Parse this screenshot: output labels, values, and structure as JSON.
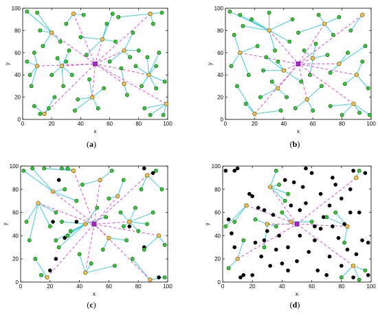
{
  "chart_data": [
    {
      "type": "scatter",
      "caption_letter": "a",
      "xlabel": "x",
      "ylabel": "y",
      "xlim": [
        0,
        100
      ],
      "ylim": [
        0,
        100
      ],
      "x_ticks": [
        0,
        20,
        40,
        60,
        80,
        100
      ],
      "y_ticks": [
        0,
        20,
        40,
        60,
        80,
        100
      ],
      "grid": false,
      "base_station": [
        50,
        50
      ],
      "cluster_heads": [
        [
          15,
          5
        ],
        [
          10,
          48
        ],
        [
          20,
          78
        ],
        [
          35,
          95
        ],
        [
          55,
          72
        ],
        [
          70,
          62
        ],
        [
          70,
          32
        ],
        [
          48,
          20
        ],
        [
          87,
          40
        ],
        [
          99,
          14
        ],
        [
          88,
          95
        ],
        [
          27,
          48
        ]
      ],
      "members": [
        [
          3,
          97
        ],
        [
          10,
          96
        ],
        [
          12,
          80
        ],
        [
          8,
          60
        ],
        [
          3,
          52
        ],
        [
          5,
          40
        ],
        [
          8,
          12
        ],
        [
          12,
          5
        ],
        [
          18,
          10
        ],
        [
          22,
          20
        ],
        [
          20,
          40
        ],
        [
          24,
          55
        ],
        [
          28,
          30
        ],
        [
          26,
          70
        ],
        [
          30,
          86
        ],
        [
          32,
          62
        ],
        [
          34,
          40
        ],
        [
          38,
          18
        ],
        [
          36,
          8
        ],
        [
          40,
          74
        ],
        [
          44,
          58
        ],
        [
          46,
          36
        ],
        [
          52,
          10
        ],
        [
          56,
          28
        ],
        [
          60,
          52
        ],
        [
          58,
          86
        ],
        [
          62,
          95
        ],
        [
          66,
          92
        ],
        [
          64,
          70
        ],
        [
          68,
          46
        ],
        [
          72,
          22
        ],
        [
          74,
          56
        ],
        [
          78,
          48
        ],
        [
          80,
          62
        ],
        [
          76,
          78
        ],
        [
          82,
          30
        ],
        [
          84,
          10
        ],
        [
          86,
          56
        ],
        [
          90,
          86
        ],
        [
          92,
          28
        ],
        [
          94,
          60
        ],
        [
          96,
          96
        ],
        [
          98,
          34
        ],
        [
          97,
          4
        ],
        [
          88,
          4
        ],
        [
          42,
          94
        ],
        [
          14,
          66
        ],
        [
          6,
          30
        ],
        [
          30,
          52
        ],
        [
          92,
          48
        ]
      ],
      "point_colors": {
        "member": "#33cc33",
        "cluster_head": "#f5c24a",
        "dead": "#000000",
        "base_station": "#b020d0",
        "member_link": "#2ec6d8",
        "ch_link": "#d33bd3"
      }
    },
    {
      "type": "scatter",
      "caption_letter": "b",
      "xlabel": "x",
      "ylabel": "y",
      "xlim": [
        0,
        100
      ],
      "ylim": [
        0,
        100
      ],
      "x_ticks": [
        0,
        20,
        40,
        60,
        80,
        100
      ],
      "y_ticks": [
        0,
        20,
        40,
        60,
        80,
        100
      ],
      "grid": false,
      "base_station": [
        50,
        50
      ],
      "cluster_heads": [
        [
          10,
          60
        ],
        [
          20,
          5
        ],
        [
          30,
          80
        ],
        [
          36,
          28
        ],
        [
          40,
          44
        ],
        [
          60,
          55
        ],
        [
          56,
          18
        ],
        [
          68,
          86
        ],
        [
          78,
          50
        ],
        [
          90,
          40
        ],
        [
          94,
          94
        ],
        [
          88,
          14
        ]
      ],
      "members": [
        [
          3,
          97
        ],
        [
          10,
          94
        ],
        [
          6,
          76
        ],
        [
          4,
          48
        ],
        [
          8,
          30
        ],
        [
          14,
          14
        ],
        [
          24,
          20
        ],
        [
          26,
          44
        ],
        [
          22,
          66
        ],
        [
          18,
          90
        ],
        [
          30,
          96
        ],
        [
          34,
          62
        ],
        [
          38,
          8
        ],
        [
          42,
          20
        ],
        [
          44,
          70
        ],
        [
          46,
          90
        ],
        [
          50,
          78
        ],
        [
          52,
          34
        ],
        [
          58,
          40
        ],
        [
          62,
          68
        ],
        [
          64,
          94
        ],
        [
          66,
          30
        ],
        [
          70,
          58
        ],
        [
          72,
          12
        ],
        [
          74,
          76
        ],
        [
          78,
          92
        ],
        [
          82,
          32
        ],
        [
          84,
          60
        ],
        [
          86,
          80
        ],
        [
          92,
          6
        ],
        [
          96,
          66
        ],
        [
          98,
          28
        ],
        [
          99,
          4
        ],
        [
          80,
          4
        ],
        [
          54,
          62
        ],
        [
          28,
          56
        ],
        [
          16,
          40
        ],
        [
          12,
          84
        ],
        [
          36,
          52
        ],
        [
          60,
          8
        ],
        [
          72,
          42
        ],
        [
          94,
          52
        ],
        [
          48,
          10
        ],
        [
          32,
          34
        ]
      ],
      "point_colors": {
        "member": "#33cc33",
        "cluster_head": "#f5c24a",
        "dead": "#000000",
        "base_station": "#b020d0",
        "member_link": "#2ec6d8",
        "ch_link": "#d33bd3"
      }
    },
    {
      "type": "scatter",
      "caption_letter": "c",
      "xlabel": "x",
      "ylabel": "y",
      "xlim": [
        0,
        100
      ],
      "ylim": [
        0,
        100
      ],
      "x_ticks": [
        0,
        20,
        40,
        60,
        80,
        100
      ],
      "y_ticks": [
        0,
        20,
        40,
        60,
        80,
        100
      ],
      "grid": false,
      "base_station": [
        50,
        50
      ],
      "cluster_heads": [
        [
          18,
          4
        ],
        [
          12,
          68
        ],
        [
          22,
          78
        ],
        [
          36,
          96
        ],
        [
          44,
          50
        ],
        [
          54,
          88
        ],
        [
          66,
          74
        ],
        [
          60,
          38
        ],
        [
          74,
          52
        ],
        [
          86,
          92
        ],
        [
          88,
          2
        ],
        [
          94,
          40
        ],
        [
          44,
          8
        ]
      ],
      "members": [
        [
          2,
          96
        ],
        [
          8,
          98
        ],
        [
          4,
          52
        ],
        [
          6,
          36
        ],
        [
          10,
          20
        ],
        [
          14,
          6
        ],
        [
          20,
          48
        ],
        [
          24,
          60
        ],
        [
          26,
          30
        ],
        [
          28,
          52
        ],
        [
          30,
          80
        ],
        [
          32,
          98
        ],
        [
          34,
          44
        ],
        [
          38,
          70
        ],
        [
          40,
          24
        ],
        [
          42,
          84
        ],
        [
          48,
          16
        ],
        [
          52,
          64
        ],
        [
          56,
          28
        ],
        [
          58,
          56
        ],
        [
          62,
          96
        ],
        [
          64,
          14
        ],
        [
          68,
          60
        ],
        [
          70,
          88
        ],
        [
          72,
          36
        ],
        [
          76,
          20
        ],
        [
          78,
          64
        ],
        [
          80,
          44
        ],
        [
          82,
          80
        ],
        [
          84,
          28
        ],
        [
          90,
          60
        ],
        [
          92,
          96
        ],
        [
          96,
          80
        ],
        [
          98,
          32
        ],
        [
          98,
          4
        ],
        [
          28,
          98
        ],
        [
          16,
          98
        ],
        [
          24,
          36
        ],
        [
          32,
          40
        ],
        [
          86,
          50
        ],
        [
          70,
          48
        ],
        [
          60,
          72
        ]
      ],
      "dead": [
        [
          20,
          10
        ],
        [
          22,
          52
        ],
        [
          26,
          88
        ],
        [
          38,
          52
        ],
        [
          84,
          98
        ],
        [
          90,
          94
        ],
        [
          84,
          30
        ],
        [
          94,
          4
        ],
        [
          74,
          48
        ],
        [
          24,
          20
        ],
        [
          30,
          38
        ]
      ],
      "point_colors": {
        "member": "#33cc33",
        "cluster_head": "#f5c24a",
        "dead": "#000000",
        "base_station": "#b020d0",
        "member_link": "#2ec6d8",
        "ch_link": "#d33bd3"
      }
    },
    {
      "type": "scatter",
      "caption_letter": "d",
      "xlabel": "x",
      "ylabel": "y",
      "xlim": [
        0,
        100
      ],
      "ylim": [
        0,
        100
      ],
      "x_ticks": [
        0,
        20,
        40,
        60,
        80,
        100
      ],
      "y_ticks": [
        0,
        20,
        40,
        60,
        80,
        100
      ],
      "grid": false,
      "base_station": [
        50,
        50
      ],
      "cluster_heads": [
        [
          10,
          20
        ],
        [
          16,
          66
        ],
        [
          32,
          82
        ],
        [
          30,
          50
        ],
        [
          46,
          52
        ],
        [
          84,
          48
        ],
        [
          88,
          14
        ],
        [
          90,
          90
        ]
      ],
      "members": [
        [
          2,
          48
        ],
        [
          8,
          52
        ],
        [
          14,
          36
        ],
        [
          4,
          12
        ],
        [
          22,
          54
        ],
        [
          36,
          48
        ],
        [
          40,
          60
        ],
        [
          42,
          70
        ],
        [
          44,
          76
        ],
        [
          36,
          96
        ],
        [
          28,
          30
        ],
        [
          60,
          52
        ],
        [
          70,
          56
        ],
        [
          76,
          60
        ],
        [
          92,
          96
        ],
        [
          96,
          10
        ],
        [
          92,
          2
        ],
        [
          80,
          4
        ],
        [
          82,
          34
        ],
        [
          38,
          84
        ]
      ],
      "dead": [
        [
          2,
          96
        ],
        [
          8,
          96
        ],
        [
          4,
          54
        ],
        [
          6,
          42
        ],
        [
          8,
          30
        ],
        [
          12,
          4
        ],
        [
          14,
          6
        ],
        [
          20,
          6
        ],
        [
          18,
          76
        ],
        [
          22,
          34
        ],
        [
          24,
          64
        ],
        [
          26,
          22
        ],
        [
          28,
          36
        ],
        [
          30,
          44
        ],
        [
          32,
          14
        ],
        [
          34,
          58
        ],
        [
          36,
          28
        ],
        [
          38,
          40
        ],
        [
          40,
          16
        ],
        [
          42,
          88
        ],
        [
          44,
          30
        ],
        [
          46,
          66
        ],
        [
          48,
          86
        ],
        [
          50,
          18
        ],
        [
          52,
          40
        ],
        [
          54,
          82
        ],
        [
          56,
          68
        ],
        [
          58,
          26
        ],
        [
          60,
          94
        ],
        [
          62,
          36
        ],
        [
          64,
          10
        ],
        [
          66,
          76
        ],
        [
          66,
          46
        ],
        [
          68,
          56
        ],
        [
          70,
          6
        ],
        [
          72,
          22
        ],
        [
          72,
          66
        ],
        [
          74,
          48
        ],
        [
          76,
          84
        ],
        [
          78,
          38
        ],
        [
          80,
          14
        ],
        [
          80,
          72
        ],
        [
          82,
          50
        ],
        [
          84,
          28
        ],
        [
          86,
          60
        ],
        [
          88,
          4
        ],
        [
          90,
          24
        ],
        [
          92,
          60
        ],
        [
          94,
          36
        ],
        [
          96,
          94
        ],
        [
          98,
          34
        ],
        [
          98,
          6
        ],
        [
          88,
          96
        ],
        [
          56,
          98
        ],
        [
          10,
          98
        ],
        [
          20,
          74
        ],
        [
          28,
          62
        ],
        [
          62,
          48
        ],
        [
          74,
          90
        ],
        [
          86,
          80
        ],
        [
          52,
          62
        ],
        [
          44,
          10
        ]
      ],
      "point_colors": {
        "member": "#33cc33",
        "cluster_head": "#f5c24a",
        "dead": "#000000",
        "base_station": "#b020d0",
        "member_link": "#2ec6d8",
        "ch_link": "#d33bd3"
      }
    }
  ]
}
